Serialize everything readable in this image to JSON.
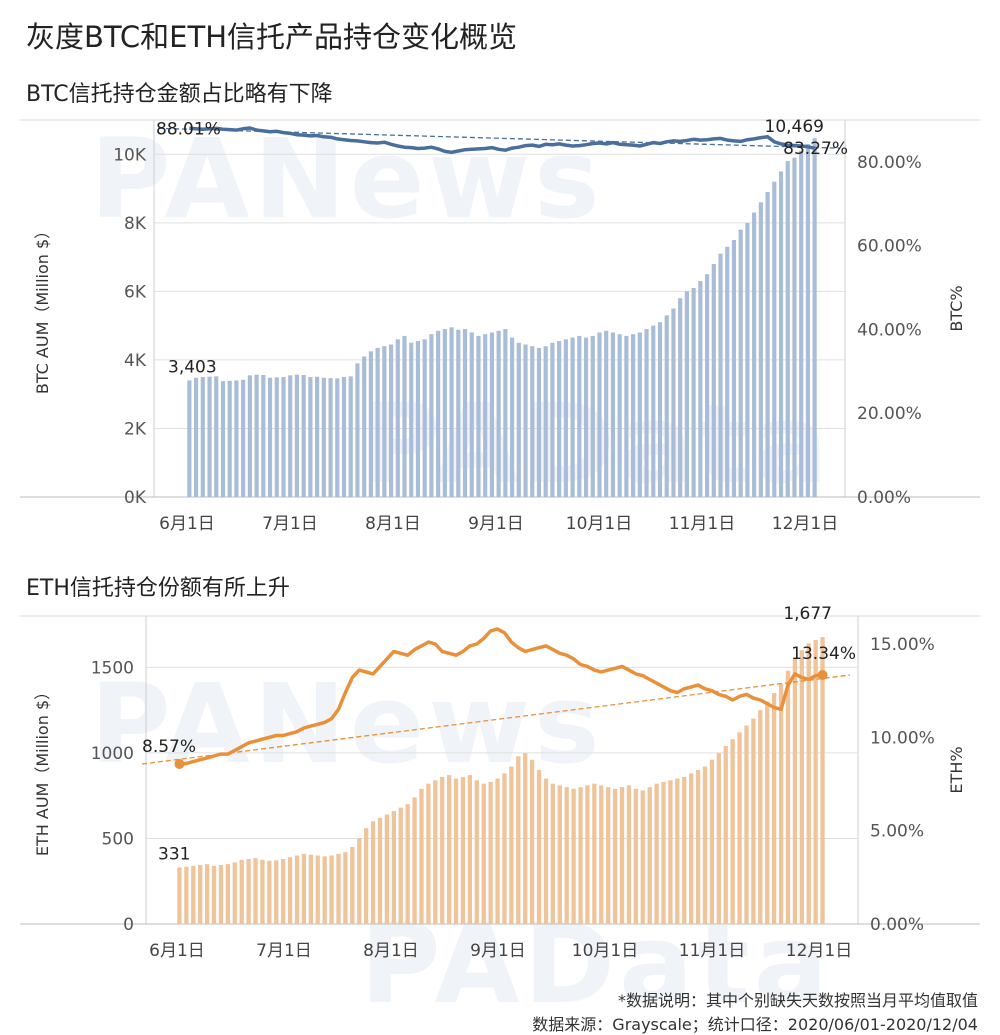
{
  "title": "灰度BTC和ETH信托产品持仓变化概览",
  "watermarks": [
    "PANews",
    "PAData",
    "PANews",
    "PAData"
  ],
  "notes": {
    "line1": "*数据说明：其中个别缺失天数按照当月平均值取值",
    "line2": "数据来源：Grayscale；统计口径：2020/06/01-2020/12/04"
  },
  "colors": {
    "btc_bar": "#a9bdd8",
    "btc_line": "#4a6f9c",
    "eth_bar": "#f0c49a",
    "eth_line": "#e8903a",
    "grid": "#e0e0e0"
  },
  "chart_data": [
    {
      "type": "bar",
      "title": "BTC信托持仓金额占比略有下降",
      "ylabel": "BTC AUM（Million $）",
      "y2label": "BTC%",
      "xticks": [
        "6月1日",
        "7月1日",
        "8月1日",
        "9月1日",
        "10月1日",
        "11月1日",
        "12月1日"
      ],
      "ylim": [
        0,
        11000
      ],
      "yticks": [
        "0K",
        "2K",
        "4K",
        "6K",
        "8K",
        "10K"
      ],
      "y2lim": [
        0,
        90
      ],
      "y2ticks": [
        "0.00%",
        "20.00%",
        "40.00%",
        "60.00%",
        "80.00%"
      ],
      "bar_values": [
        3403,
        3480,
        3500,
        3510,
        3520,
        3380,
        3390,
        3400,
        3420,
        3550,
        3570,
        3560,
        3480,
        3490,
        3500,
        3550,
        3570,
        3560,
        3500,
        3510,
        3480,
        3470,
        3460,
        3500,
        3520,
        3900,
        4100,
        4250,
        4350,
        4400,
        4450,
        4600,
        4700,
        4500,
        4550,
        4600,
        4750,
        4850,
        4900,
        4950,
        4880,
        4900,
        4800,
        4700,
        4750,
        4800,
        4850,
        4900,
        4650,
        4500,
        4450,
        4400,
        4350,
        4400,
        4500,
        4550,
        4600,
        4650,
        4700,
        4650,
        4700,
        4800,
        4850,
        4800,
        4750,
        4700,
        4750,
        4800,
        4900,
        5000,
        5100,
        5300,
        5500,
        5800,
        6000,
        6100,
        6300,
        6500,
        6800,
        7100,
        7300,
        7500,
        7800,
        8000,
        8300,
        8600,
        8900,
        9200,
        9500,
        9800,
        9900,
        10100,
        10300,
        10469
      ],
      "share_values": [
        88.01,
        87.9,
        87.8,
        87.9,
        88.0,
        87.8,
        87.7,
        87.6,
        87.9,
        88.1,
        87.6,
        87.4,
        87.2,
        87.3,
        87.0,
        86.8,
        86.5,
        86.4,
        86.2,
        86.3,
        86.0,
        85.9,
        85.5,
        85.3,
        85.1,
        85.0,
        84.8,
        84.6,
        84.5,
        84.7,
        84.2,
        83.8,
        83.5,
        83.4,
        83.2,
        83.3,
        83.5,
        83.1,
        82.5,
        82.3,
        82.6,
        82.9,
        83.0,
        83.1,
        83.2,
        83.4,
        83.0,
        82.8,
        83.3,
        83.5,
        83.9,
        84.0,
        83.7,
        84.2,
        84.1,
        84.3,
        84.0,
        83.8,
        83.9,
        84.1,
        84.4,
        84.5,
        84.3,
        84.6,
        84.2,
        84.1,
        84.0,
        83.8,
        84.2,
        84.6,
        84.4,
        84.8,
        85.0,
        84.9,
        85.1,
        85.4,
        85.2,
        85.3,
        85.5,
        85.6,
        85.2,
        85.0,
        84.9,
        85.3,
        85.5,
        85.8,
        86.0,
        84.8,
        84.3,
        84.0,
        83.9,
        83.8,
        83.6,
        83.27
      ],
      "labels": {
        "first_bar": "3,403",
        "last_bar": "10,469",
        "first_share": "88.01%",
        "last_share": "83.27%"
      }
    },
    {
      "type": "bar",
      "title": "ETH信托持仓份额有所上升",
      "ylabel": "ETH AUM（Million $）",
      "y2label": "ETH%",
      "xticks": [
        "6月1日",
        "7月1日",
        "8月1日",
        "9月1日",
        "10月1日",
        "11月1日",
        "12月1日"
      ],
      "ylim": [
        0,
        1800
      ],
      "yticks": [
        "0",
        "500",
        "1000",
        "1500"
      ],
      "y2lim": [
        0,
        16.5
      ],
      "y2ticks": [
        "0.00%",
        "5.00%",
        "10.00%",
        "15.00%"
      ],
      "bar_values": [
        331,
        335,
        340,
        345,
        350,
        340,
        345,
        350,
        360,
        375,
        380,
        385,
        375,
        370,
        372,
        380,
        390,
        400,
        410,
        405,
        400,
        395,
        400,
        410,
        420,
        450,
        500,
        560,
        600,
        620,
        640,
        660,
        680,
        700,
        740,
        790,
        820,
        840,
        860,
        870,
        850,
        860,
        870,
        840,
        820,
        830,
        850,
        880,
        920,
        980,
        1000,
        960,
        900,
        850,
        820,
        810,
        800,
        790,
        800,
        810,
        820,
        810,
        800,
        790,
        800,
        810,
        790,
        780,
        800,
        820,
        830,
        840,
        850,
        860,
        880,
        900,
        920,
        960,
        1000,
        1040,
        1080,
        1120,
        1160,
        1200,
        1250,
        1300,
        1350,
        1400,
        1480,
        1550,
        1600,
        1640,
        1660,
        1677
      ],
      "share_values": [
        8.57,
        8.6,
        8.7,
        8.8,
        8.9,
        9.0,
        9.1,
        9.1,
        9.3,
        9.5,
        9.7,
        9.8,
        9.9,
        10.0,
        10.1,
        10.1,
        10.2,
        10.3,
        10.5,
        10.6,
        10.7,
        10.8,
        11.0,
        11.5,
        12.4,
        13.2,
        13.6,
        13.5,
        13.4,
        13.8,
        14.2,
        14.6,
        14.5,
        14.4,
        14.7,
        14.9,
        15.1,
        15.0,
        14.6,
        14.5,
        14.4,
        14.6,
        14.9,
        15.0,
        15.3,
        15.7,
        15.8,
        15.6,
        15.1,
        14.8,
        14.6,
        14.7,
        14.8,
        14.9,
        14.7,
        14.5,
        14.4,
        14.2,
        13.9,
        13.8,
        13.6,
        13.5,
        13.6,
        13.7,
        13.8,
        13.6,
        13.4,
        13.3,
        13.1,
        12.9,
        12.7,
        12.5,
        12.4,
        12.6,
        12.7,
        12.8,
        12.6,
        12.5,
        12.3,
        12.2,
        12.0,
        12.2,
        12.3,
        12.1,
        12.0,
        11.8,
        11.6,
        11.5,
        12.8,
        13.4,
        13.2,
        13.1,
        13.3,
        13.34
      ],
      "labels": {
        "first_bar": "331",
        "last_bar": "1,677",
        "first_share": "8.57%",
        "last_share": "13.34%"
      }
    }
  ]
}
